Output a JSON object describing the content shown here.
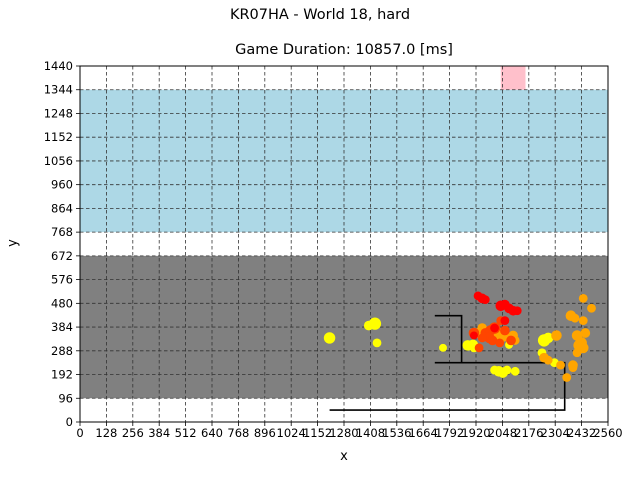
{
  "figure_title": "KR07HA - World 18, hard",
  "chart_data": {
    "type": "scatter",
    "title": "Game Duration: 10857.0 [ms]",
    "xlabel": "x",
    "ylabel": "y",
    "xlim": [
      0,
      2560
    ],
    "ylim": [
      0,
      1440
    ],
    "grid": true,
    "grid_style": "dashed",
    "x_ticks": [
      0,
      128,
      256,
      384,
      512,
      640,
      768,
      896,
      1024,
      1152,
      1280,
      1408,
      1536,
      1664,
      1792,
      1920,
      2048,
      2176,
      2304,
      2432,
      2560
    ],
    "x_tick_labels": [
      "0",
      "128",
      "256",
      "384",
      "512",
      "640",
      "768",
      "896",
      "1024",
      "1152",
      "1280",
      "1408",
      "1536",
      "1664",
      "1792",
      "1920",
      "2048",
      "2176",
      "2304",
      "2432",
      "2560"
    ],
    "y_ticks": [
      0,
      96,
      192,
      288,
      384,
      480,
      576,
      672,
      768,
      864,
      960,
      1056,
      1152,
      1248,
      1344,
      1440
    ],
    "y_tick_labels": [
      "0",
      "96",
      "192",
      "288",
      "384",
      "480",
      "576",
      "672",
      "768",
      "864",
      "960",
      "1056",
      "1152",
      "1248",
      "1344",
      "1440"
    ],
    "regions": [
      {
        "name": "gray-area",
        "color": "#808080",
        "x": [
          0,
          2560
        ],
        "y": [
          96,
          672
        ]
      },
      {
        "name": "lightblue-area",
        "color": "#add8e6",
        "x": [
          0,
          2560
        ],
        "y": [
          768,
          1344
        ]
      },
      {
        "name": "pink-box",
        "color": "#ffc0cb",
        "x": [
          2040,
          2160
        ],
        "y": [
          1344,
          1440
        ]
      }
    ],
    "paths": [
      {
        "name": "black-path-outer",
        "color": "#000000",
        "points": [
          [
            1210,
            48
          ],
          [
            2350,
            48
          ],
          [
            2350,
            240
          ],
          [
            1720,
            240
          ]
        ]
      },
      {
        "name": "black-path-inner",
        "color": "#000000",
        "points": [
          [
            1720,
            430
          ],
          [
            1850,
            430
          ],
          [
            1850,
            240
          ]
        ]
      }
    ],
    "series": [
      {
        "color": "#ffff00",
        "points": [
          [
            1210,
            340,
            2.6
          ],
          [
            1400,
            390,
            2.2
          ],
          [
            1430,
            398,
            2.8
          ],
          [
            1440,
            320,
            2.0
          ],
          [
            1760,
            300,
            1.8
          ],
          [
            1880,
            310,
            2.4
          ],
          [
            1905,
            312,
            2.4
          ],
          [
            1910,
            300,
            2.0
          ],
          [
            2010,
            210,
            2.0
          ],
          [
            2030,
            205,
            2.4
          ],
          [
            2050,
            200,
            2.4
          ],
          [
            2070,
            210,
            2.0
          ],
          [
            2110,
            205,
            2.0
          ],
          [
            2080,
            312,
            1.8
          ],
          [
            2250,
            330,
            2.8
          ],
          [
            2270,
            340,
            2.4
          ],
          [
            2240,
            280,
            2.0
          ],
          [
            2300,
            240,
            2.0
          ]
        ]
      },
      {
        "color": "#ffa500",
        "points": [
          [
            1930,
            360,
            2.2
          ],
          [
            1950,
            380,
            2.2
          ],
          [
            1960,
            370,
            2.0
          ],
          [
            1980,
            360,
            2.2
          ],
          [
            2000,
            350,
            2.4
          ],
          [
            2020,
            370,
            2.2
          ],
          [
            2040,
            340,
            2.4
          ],
          [
            2060,
            360,
            2.0
          ],
          [
            2080,
            340,
            2.2
          ],
          [
            2100,
            350,
            2.2
          ],
          [
            2110,
            330,
            2.0
          ],
          [
            2250,
            260,
            2.2
          ],
          [
            2270,
            250,
            2.0
          ],
          [
            2310,
            350,
            2.4
          ],
          [
            2330,
            230,
            2.0
          ],
          [
            2360,
            180,
            2.0
          ],
          [
            2390,
            230,
            2.2
          ],
          [
            2380,
            430,
            2.4
          ],
          [
            2400,
            420,
            2.0
          ],
          [
            2410,
            350,
            2.4
          ],
          [
            2420,
            310,
            2.6
          ],
          [
            2430,
            320,
            2.6
          ],
          [
            2440,
            300,
            2.4
          ],
          [
            2450,
            360,
            2.2
          ],
          [
            2440,
            500,
            2.0
          ],
          [
            2480,
            460,
            2.0
          ],
          [
            2440,
            410,
            2.0
          ],
          [
            2410,
            280,
            2.0
          ],
          [
            2390,
            220,
            2.0
          ]
        ]
      },
      {
        "color": "#ff4500",
        "points": [
          [
            1910,
            360,
            2.4
          ],
          [
            1935,
            300,
            2.0
          ],
          [
            1965,
            360,
            2.2
          ],
          [
            1990,
            370,
            2.4
          ],
          [
            1985,
            340,
            2.4
          ],
          [
            2010,
            380,
            2.6
          ],
          [
            2040,
            410,
            2.0
          ],
          [
            2060,
            370,
            2.2
          ],
          [
            2090,
            330,
            2.2
          ],
          [
            2000,
            330,
            2.2
          ],
          [
            1950,
            340,
            2.0
          ],
          [
            2035,
            320,
            2.0
          ]
        ]
      },
      {
        "color": "#ff0000",
        "points": [
          [
            1930,
            510,
            2.0
          ],
          [
            1950,
            500,
            2.2
          ],
          [
            1965,
            495,
            2.0
          ],
          [
            2040,
            470,
            2.4
          ],
          [
            2060,
            475,
            2.2
          ],
          [
            2080,
            460,
            2.2
          ],
          [
            2100,
            450,
            2.2
          ],
          [
            2060,
            410,
            2.0
          ],
          [
            2010,
            380,
            2.0
          ],
          [
            2120,
            450,
            2.0
          ],
          [
            1910,
            350,
            1.8
          ]
        ]
      }
    ]
  }
}
